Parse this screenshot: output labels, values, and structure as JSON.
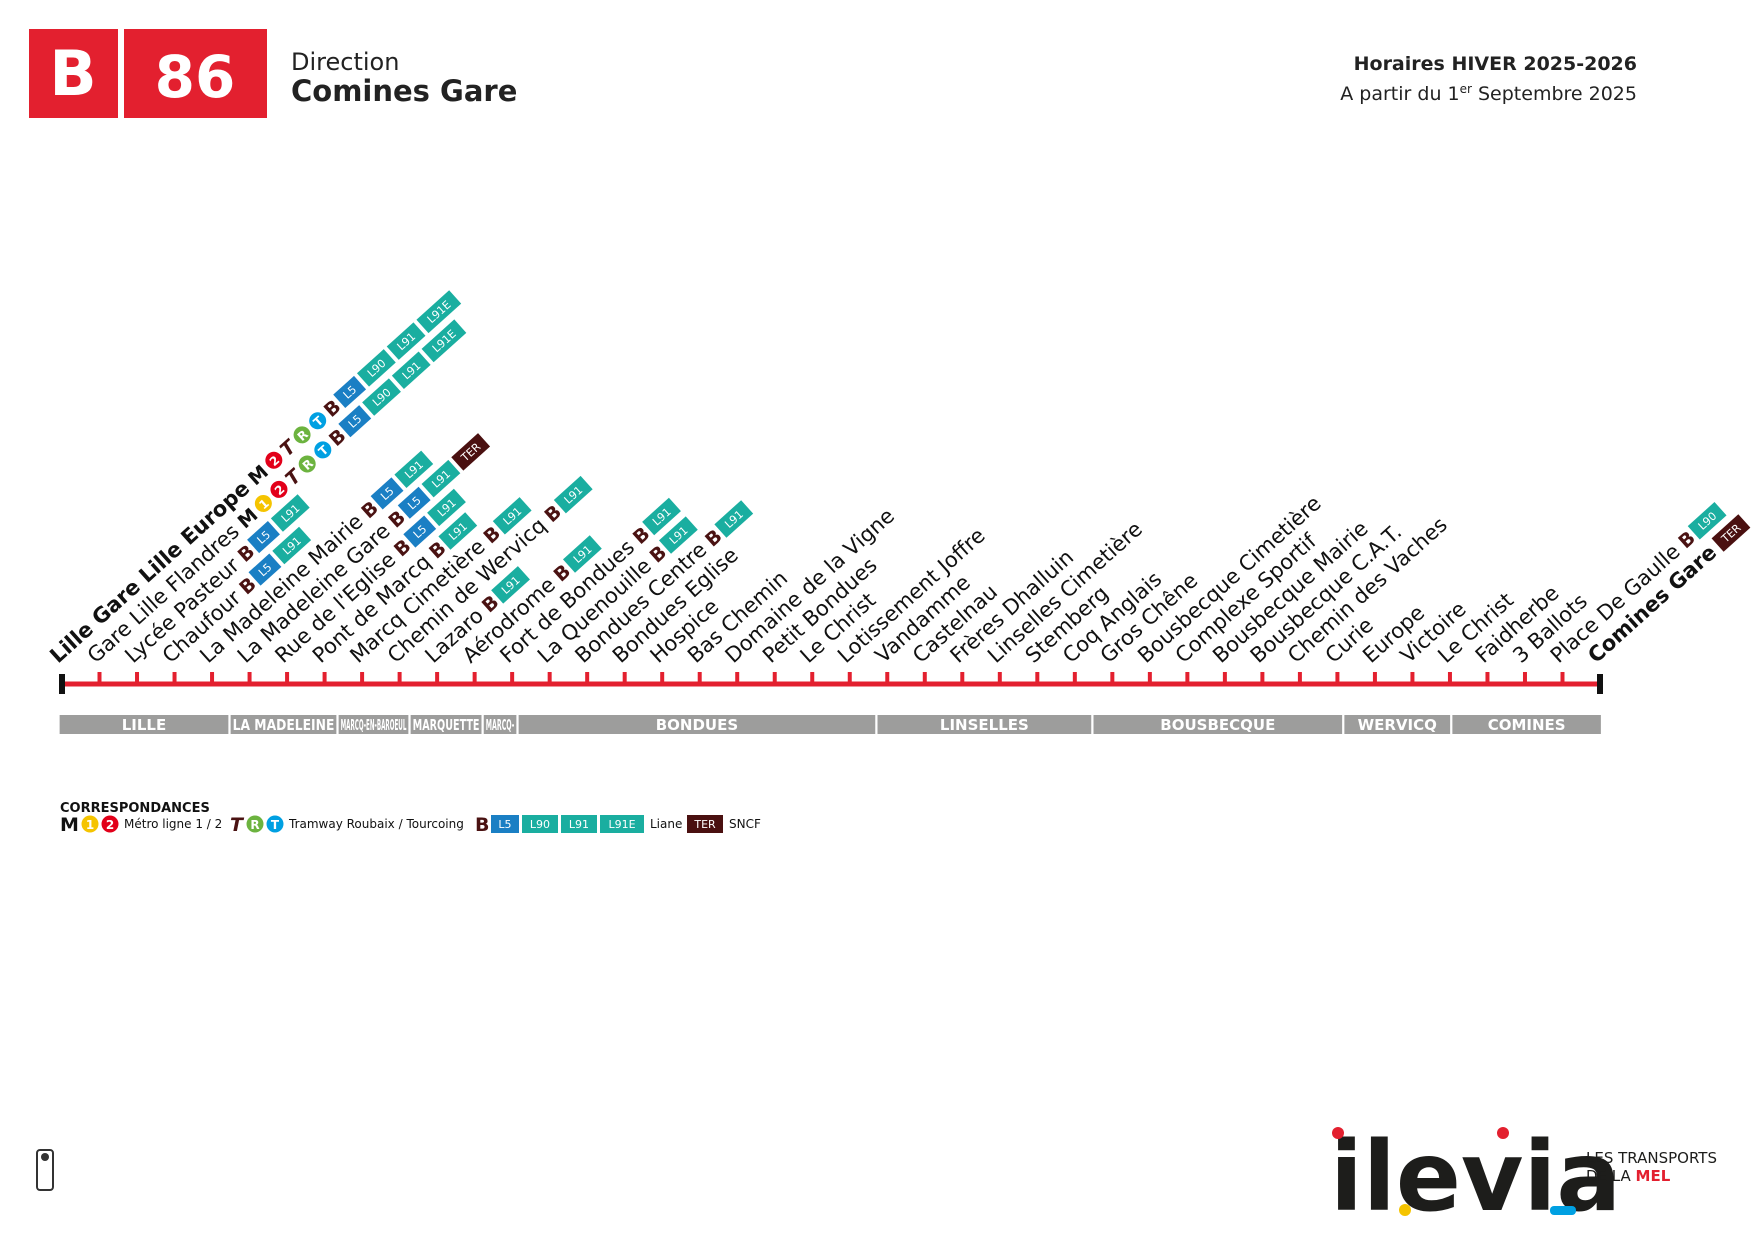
{
  "header": {
    "brand": "B",
    "line": "86",
    "direction_label": "Direction",
    "destination": "Comines Gare",
    "season": "Horaires HIVER 2025-2026",
    "start_prefix": "A partir du 1",
    "start_sup": "er",
    "start_suffix": " Septembre 2025"
  },
  "stops": [
    {
      "name": "Lille Gare Lille Europe",
      "connections": [
        "M",
        "2",
        "T",
        "R",
        "T",
        "B",
        "L5",
        "L90",
        "L91",
        "L91E"
      ]
    },
    {
      "name": "Gare Lille Flandres",
      "connections": [
        "M",
        "1",
        "2",
        "T",
        "R",
        "T",
        "B",
        "L5",
        "L90",
        "L91",
        "L91E"
      ]
    },
    {
      "name": "Lycée Pasteur",
      "connections": [
        "B",
        "L5",
        "L91"
      ]
    },
    {
      "name": "Chaufour",
      "connections": [
        "B",
        "L5",
        "L91"
      ]
    },
    {
      "name": "La Madeleine Mairie",
      "connections": [
        "B",
        "L5",
        "L91"
      ]
    },
    {
      "name": "La Madeleine Gare",
      "connections": [
        "B",
        "L5",
        "L91",
        "TER"
      ]
    },
    {
      "name": "Rue de l'Eglise",
      "connections": [
        "B",
        "L5",
        "L91"
      ]
    },
    {
      "name": "Pont de Marcq",
      "connections": [
        "B",
        "L91"
      ]
    },
    {
      "name": "Marcq Cimetière",
      "connections": [
        "B",
        "L91"
      ]
    },
    {
      "name": "Chemin de Wervicq",
      "connections": [
        "B",
        "L91"
      ]
    },
    {
      "name": "Lazaro",
      "connections": [
        "B",
        "L91"
      ]
    },
    {
      "name": "Aérodrome",
      "connections": [
        "B",
        "L91"
      ]
    },
    {
      "name": "Fort de Bondues",
      "connections": [
        "B",
        "L91"
      ]
    },
    {
      "name": "La Quenouille",
      "connections": [
        "B",
        "L91"
      ]
    },
    {
      "name": "Bondues Centre",
      "connections": [
        "B",
        "L91"
      ]
    },
    {
      "name": "Bondues Eglise",
      "connections": []
    },
    {
      "name": "Hospice",
      "connections": []
    },
    {
      "name": "Bas Chemin",
      "connections": []
    },
    {
      "name": "Domaine de la Vigne",
      "connections": []
    },
    {
      "name": "Petit Bondues",
      "connections": []
    },
    {
      "name": "Le Christ",
      "connections": []
    },
    {
      "name": "Lotissement Joffre",
      "connections": []
    },
    {
      "name": "Vandamme",
      "connections": []
    },
    {
      "name": "Castelnau",
      "connections": []
    },
    {
      "name": "Frères Dhalluin",
      "connections": []
    },
    {
      "name": "Linselles Cimetière",
      "connections": []
    },
    {
      "name": "Stemberg",
      "connections": []
    },
    {
      "name": "Coq Anglais",
      "connections": []
    },
    {
      "name": "Gros Chêne",
      "connections": []
    },
    {
      "name": "Bousbecque Cimetière",
      "connections": []
    },
    {
      "name": "Complexe Sportif",
      "connections": []
    },
    {
      "name": "Bousbecque Mairie",
      "connections": []
    },
    {
      "name": "Bousbecque C.A.T.",
      "connections": []
    },
    {
      "name": "Chemin des Vaches",
      "connections": []
    },
    {
      "name": "Curie",
      "connections": []
    },
    {
      "name": "Europe",
      "connections": []
    },
    {
      "name": "Victoire",
      "connections": []
    },
    {
      "name": "Le Christ",
      "connections": []
    },
    {
      "name": "Faidherbe",
      "connections": []
    },
    {
      "name": "3 Ballots",
      "connections": []
    },
    {
      "name": "Place De Gaulle",
      "connections": [
        "B",
        "L90"
      ]
    },
    {
      "name": "Comines Gare",
      "connections": [
        "TER"
      ]
    }
  ],
  "zones": [
    "LILLE",
    "LA MADELEINE",
    "MARCQ-EN-BAROEUL",
    "MARQUETTE",
    "MARCQ-",
    "BONDUES",
    "LINSELLES",
    "BOUSBECQUE",
    "WERVICQ",
    "COMINES"
  ],
  "legend": {
    "title": "CORRESPONDANCES",
    "items": [
      {
        "symbols": [
          "M",
          "1",
          "2"
        ],
        "label": "Métro ligne 1 / 2"
      },
      {
        "symbols": [
          "T",
          "R",
          "T"
        ],
        "label": "Tramway Roubaix / Tourcoing"
      },
      {
        "symbols": [
          "B",
          "L5",
          "L90",
          "L91",
          "L91E"
        ],
        "label": "Liane"
      },
      {
        "symbols": [
          "TER"
        ],
        "label": "SNCF"
      }
    ]
  },
  "footer": {
    "logo": "ilevia",
    "tagline_1": "LES TRANSPORTS",
    "tagline_2": "DE LA",
    "tagline_3": "MEL"
  }
}
